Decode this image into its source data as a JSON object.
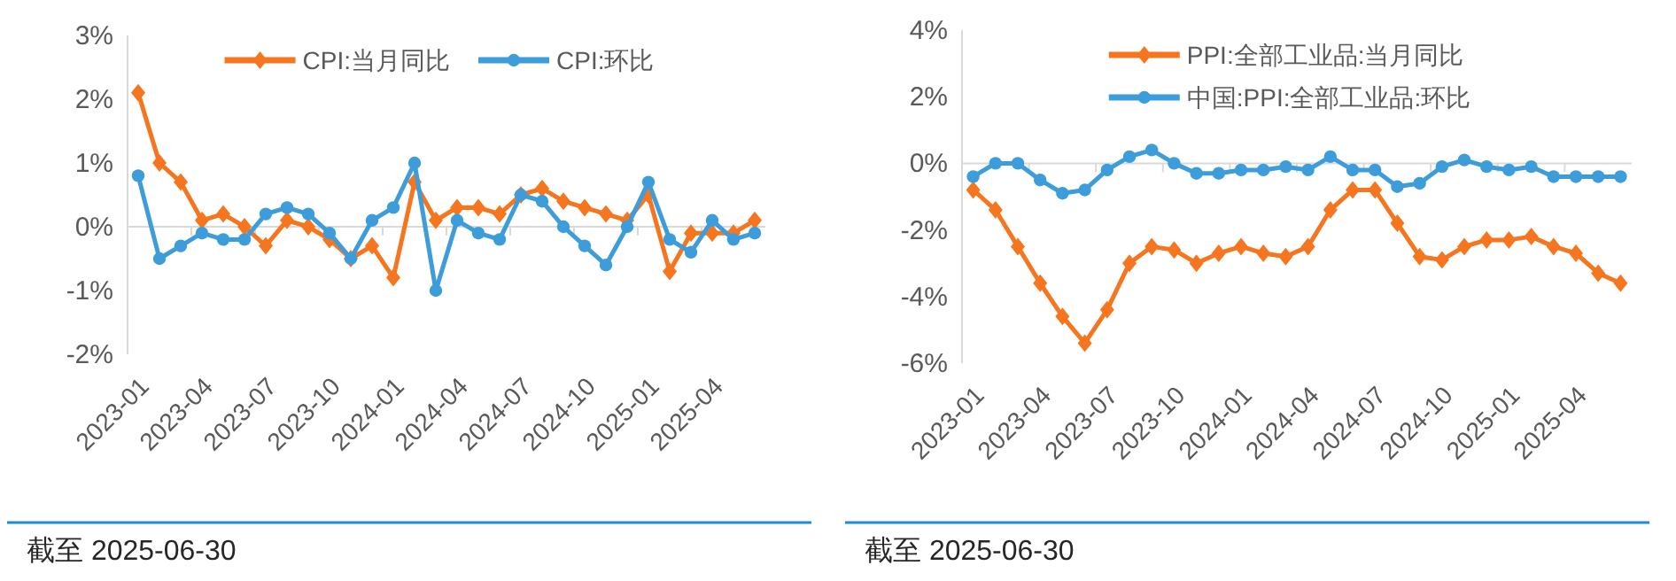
{
  "chart_data": [
    {
      "type": "line",
      "categories": [
        "2023-01",
        null,
        null,
        "2023-04",
        null,
        null,
        "2023-07",
        null,
        null,
        "2023-10",
        null,
        null,
        "2024-01",
        null,
        null,
        "2024-04",
        null,
        null,
        "2024-07",
        null,
        null,
        "2024-10",
        null,
        null,
        "2025-01",
        null,
        null,
        "2025-04",
        null,
        null
      ],
      "series": [
        {
          "name": "CPI:当月同比",
          "color": "#f5761f",
          "marker": "diamond",
          "values": [
            2.1,
            1.0,
            0.7,
            0.1,
            0.2,
            0.0,
            -0.3,
            0.1,
            0.0,
            -0.2,
            -0.5,
            -0.3,
            -0.8,
            0.7,
            0.1,
            0.3,
            0.3,
            0.2,
            0.5,
            0.6,
            0.4,
            0.3,
            0.2,
            0.1,
            0.5,
            -0.7,
            -0.1,
            -0.1,
            -0.1,
            0.1
          ]
        },
        {
          "name": "CPI:环比",
          "color": "#3d9ddb",
          "marker": "circle",
          "values": [
            0.8,
            -0.5,
            -0.3,
            -0.1,
            -0.2,
            -0.2,
            0.2,
            0.3,
            0.2,
            -0.1,
            -0.5,
            0.1,
            0.3,
            1.0,
            -1.0,
            0.1,
            -0.1,
            -0.2,
            0.5,
            0.4,
            0.0,
            -0.3,
            -0.6,
            0.0,
            0.7,
            -0.2,
            -0.4,
            0.1,
            -0.2,
            -0.1
          ]
        }
      ],
      "ylim": [
        -2,
        3
      ],
      "yticks": [
        {
          "value": -2,
          "label": "-2%"
        },
        {
          "value": -1,
          "label": "-1%"
        },
        {
          "value": 0,
          "label": "0%"
        },
        {
          "value": 1,
          "label": "1%"
        },
        {
          "value": 2,
          "label": "2%"
        },
        {
          "value": 3,
          "label": "3%"
        }
      ],
      "legend": "top",
      "annotations": [
        "截至 2025-06-30"
      ]
    },
    {
      "type": "line",
      "categories": [
        "2023-01",
        null,
        null,
        "2023-04",
        null,
        null,
        "2023-07",
        null,
        null,
        "2023-10",
        null,
        null,
        "2024-01",
        null,
        null,
        "2024-04",
        null,
        null,
        "2024-07",
        null,
        null,
        "2024-10",
        null,
        null,
        "2025-01",
        null,
        null,
        "2025-04",
        null,
        null
      ],
      "series": [
        {
          "name": "PPI:全部工业品:当月同比",
          "color": "#f5761f",
          "marker": "diamond",
          "values": [
            -0.8,
            -1.4,
            -2.5,
            -3.6,
            -4.6,
            -5.4,
            -4.4,
            -3.0,
            -2.5,
            -2.6,
            -3.0,
            -2.7,
            -2.5,
            -2.7,
            -2.8,
            -2.5,
            -1.4,
            -0.8,
            -0.8,
            -1.8,
            -2.8,
            -2.9,
            -2.5,
            -2.3,
            -2.3,
            -2.2,
            -2.5,
            -2.7,
            -3.3,
            -3.6
          ]
        },
        {
          "name": "中国:PPI:全部工业品:环比",
          "color": "#3d9ddb",
          "marker": "circle",
          "values": [
            -0.4,
            0.0,
            0.0,
            -0.5,
            -0.9,
            -0.8,
            -0.2,
            0.2,
            0.4,
            0.0,
            -0.3,
            -0.3,
            -0.2,
            -0.2,
            -0.1,
            -0.2,
            0.2,
            -0.2,
            -0.2,
            -0.7,
            -0.6,
            -0.1,
            0.1,
            -0.1,
            -0.2,
            -0.1,
            -0.4,
            -0.4,
            -0.4,
            -0.4
          ]
        }
      ],
      "ylim": [
        -6,
        4
      ],
      "yticks": [
        {
          "value": -6,
          "label": "-6%"
        },
        {
          "value": -4,
          "label": "-4%"
        },
        {
          "value": -2,
          "label": "-2%"
        },
        {
          "value": 0,
          "label": "0%"
        },
        {
          "value": 2,
          "label": "2%"
        },
        {
          "value": 4,
          "label": "4%"
        }
      ],
      "legend": "top",
      "annotations": [
        "截至 2025-06-30"
      ]
    }
  ]
}
